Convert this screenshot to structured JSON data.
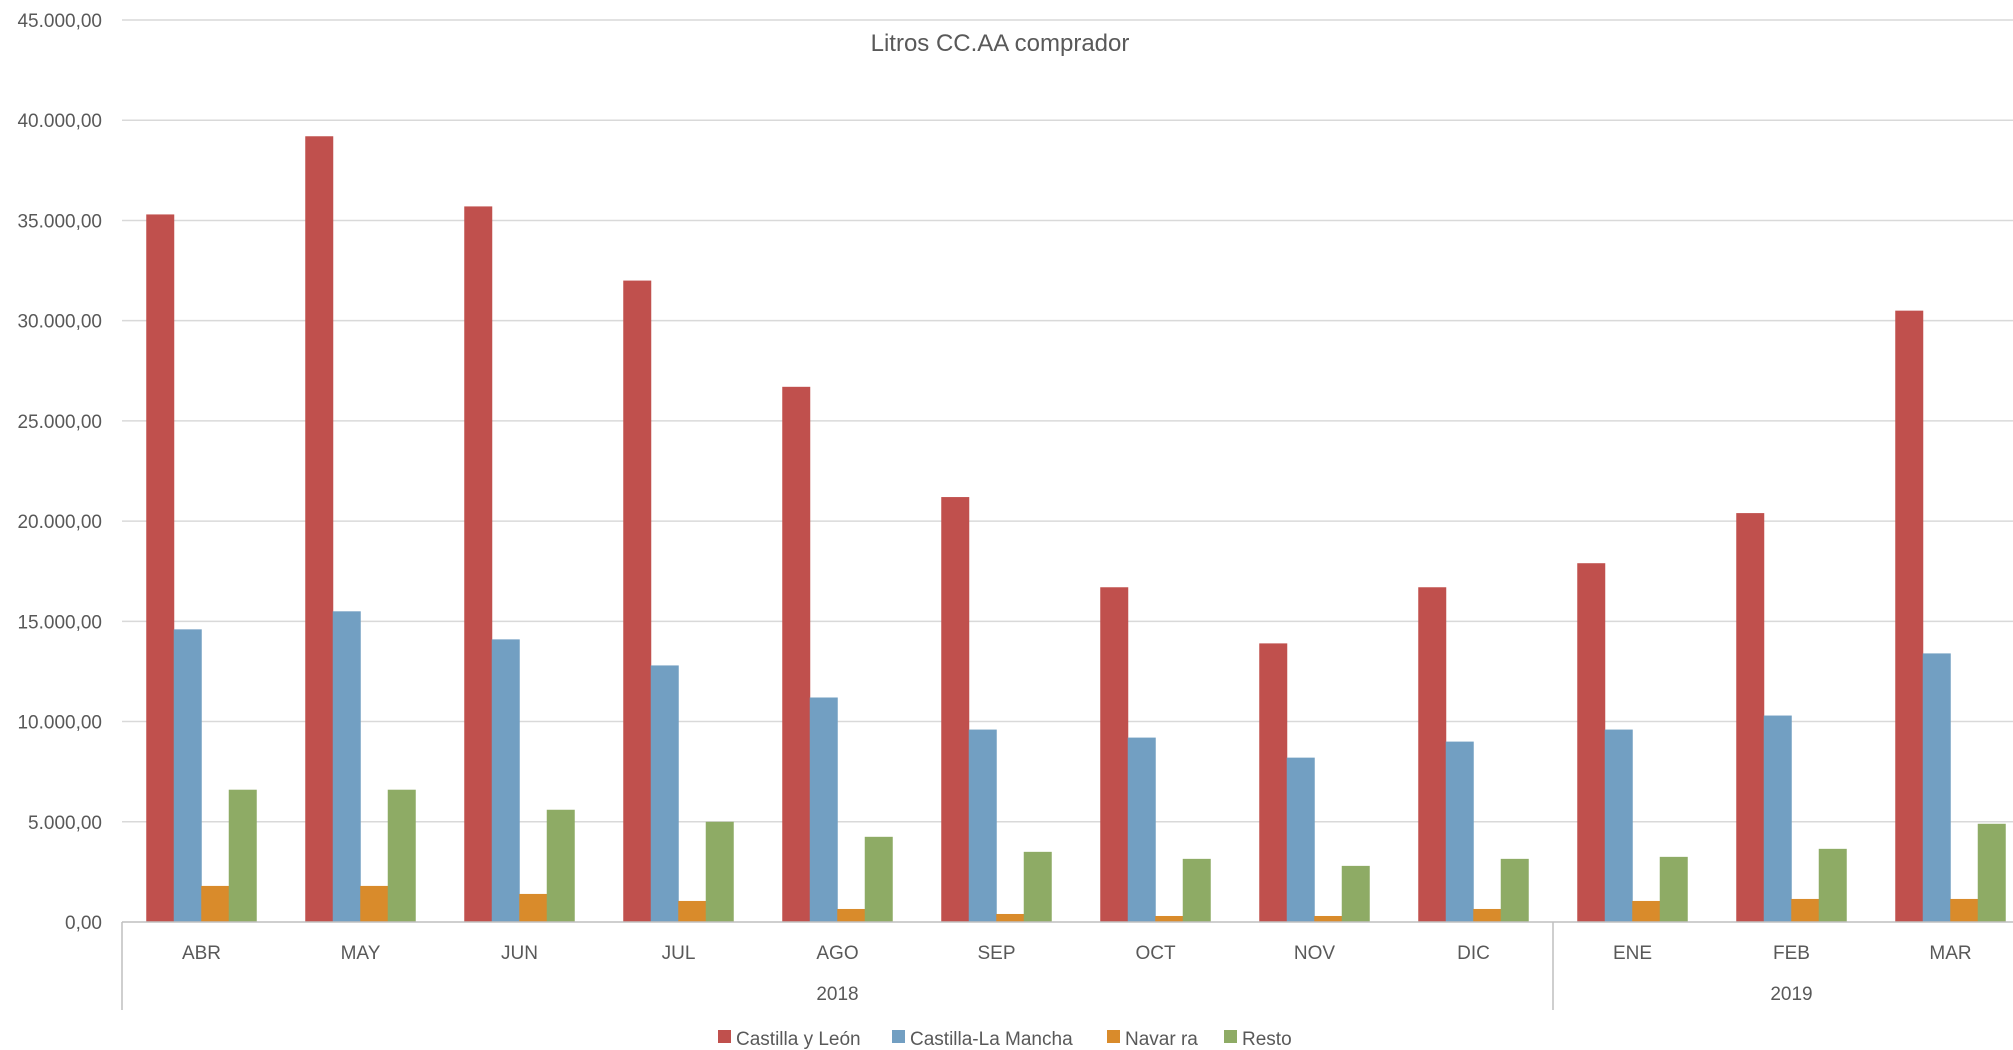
{
  "chart_data": {
    "type": "bar",
    "title": "Litros CC.AA comprador",
    "xlabel": "",
    "ylabel": "",
    "ylim": [
      0,
      45000
    ],
    "y_ticks": [
      0,
      5000,
      10000,
      15000,
      20000,
      25000,
      30000,
      35000,
      40000,
      45000
    ],
    "y_tick_labels": [
      "0,00",
      "5.000,00",
      "10.000,00",
      "15.000,00",
      "20.000,00",
      "25.000,00",
      "30.000,00",
      "35.000,00",
      "40.000,00",
      "45.000,00"
    ],
    "grid": true,
    "legend_position": "bottom",
    "categories": [
      "ABR",
      "MAY",
      "JUN",
      "JUL",
      "AGO",
      "SEP",
      "OCT",
      "NOV",
      "DIC",
      "ENE",
      "FEB",
      "MAR"
    ],
    "groups": [
      {
        "label": "2018",
        "count": 9
      },
      {
        "label": "2019",
        "count": 3
      }
    ],
    "series": [
      {
        "name": "Castilla y León",
        "color": "#C0504D",
        "values": [
          35300,
          39200,
          35700,
          32000,
          26700,
          21200,
          16700,
          13900,
          16700,
          17900,
          20400,
          30500
        ]
      },
      {
        "name": "Castilla-La Mancha",
        "color": "#729FC2",
        "values": [
          14600,
          15500,
          14100,
          12800,
          11200,
          9600,
          9200,
          8200,
          9000,
          9600,
          10300,
          13400
        ]
      },
      {
        "name": "Navar ra",
        "color": "#D98B2B",
        "values": [
          1800,
          1800,
          1400,
          1050,
          650,
          400,
          300,
          300,
          650,
          1050,
          1150,
          1150
        ]
      },
      {
        "name": "Resto",
        "color": "#8EAB65",
        "values": [
          6600,
          6600,
          5600,
          5000,
          4250,
          3500,
          3150,
          2800,
          3150,
          3250,
          3650,
          4900
        ]
      }
    ]
  }
}
